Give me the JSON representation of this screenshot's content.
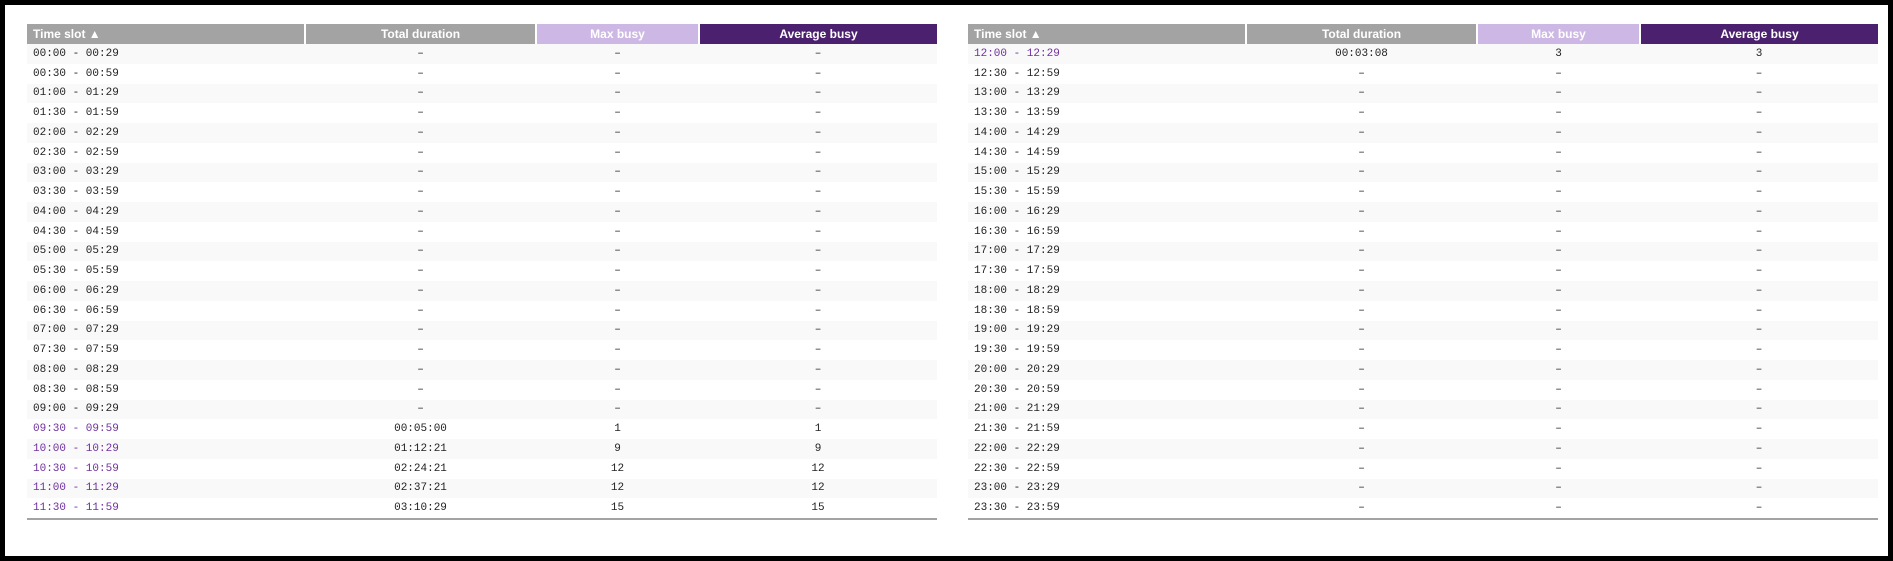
{
  "colors": {
    "header_gray": "#a3a3a3",
    "max_busy_header": "#cdb7e4",
    "avg_busy_header": "#4b216f",
    "active_slot_text": "#7030a0"
  },
  "columns": [
    "Time slot ▲",
    "Total duration",
    "Max busy",
    "Average busy"
  ],
  "left_table": {
    "rows": [
      {
        "slot": "00:00 - 00:29",
        "total": "–",
        "max": "–",
        "avg": "–"
      },
      {
        "slot": "00:30 - 00:59",
        "total": "–",
        "max": "–",
        "avg": "–"
      },
      {
        "slot": "01:00 - 01:29",
        "total": "–",
        "max": "–",
        "avg": "–"
      },
      {
        "slot": "01:30 - 01:59",
        "total": "–",
        "max": "–",
        "avg": "–"
      },
      {
        "slot": "02:00 - 02:29",
        "total": "–",
        "max": "–",
        "avg": "–"
      },
      {
        "slot": "02:30 - 02:59",
        "total": "–",
        "max": "–",
        "avg": "–"
      },
      {
        "slot": "03:00 - 03:29",
        "total": "–",
        "max": "–",
        "avg": "–"
      },
      {
        "slot": "03:30 - 03:59",
        "total": "–",
        "max": "–",
        "avg": "–"
      },
      {
        "slot": "04:00 - 04:29",
        "total": "–",
        "max": "–",
        "avg": "–"
      },
      {
        "slot": "04:30 - 04:59",
        "total": "–",
        "max": "–",
        "avg": "–"
      },
      {
        "slot": "05:00 - 05:29",
        "total": "–",
        "max": "–",
        "avg": "–"
      },
      {
        "slot": "05:30 - 05:59",
        "total": "–",
        "max": "–",
        "avg": "–"
      },
      {
        "slot": "06:00 - 06:29",
        "total": "–",
        "max": "–",
        "avg": "–"
      },
      {
        "slot": "06:30 - 06:59",
        "total": "–",
        "max": "–",
        "avg": "–"
      },
      {
        "slot": "07:00 - 07:29",
        "total": "–",
        "max": "–",
        "avg": "–"
      },
      {
        "slot": "07:30 - 07:59",
        "total": "–",
        "max": "–",
        "avg": "–"
      },
      {
        "slot": "08:00 - 08:29",
        "total": "–",
        "max": "–",
        "avg": "–"
      },
      {
        "slot": "08:30 - 08:59",
        "total": "–",
        "max": "–",
        "avg": "–"
      },
      {
        "slot": "09:00 - 09:29",
        "total": "–",
        "max": "–",
        "avg": "–"
      },
      {
        "slot": "09:30 - 09:59",
        "total": "00:05:00",
        "max": "1",
        "avg": "1",
        "active": true
      },
      {
        "slot": "10:00 - 10:29",
        "total": "01:12:21",
        "max": "9",
        "avg": "9",
        "active": true
      },
      {
        "slot": "10:30 - 10:59",
        "total": "02:24:21",
        "max": "12",
        "avg": "12",
        "active": true
      },
      {
        "slot": "11:00 - 11:29",
        "total": "02:37:21",
        "max": "12",
        "avg": "12",
        "active": true
      },
      {
        "slot": "11:30 - 11:59",
        "total": "03:10:29",
        "max": "15",
        "avg": "15",
        "active": true
      }
    ]
  },
  "right_table": {
    "rows": [
      {
        "slot": "12:00 - 12:29",
        "total": "00:03:08",
        "max": "3",
        "avg": "3",
        "active": true
      },
      {
        "slot": "12:30 - 12:59",
        "total": "–",
        "max": "–",
        "avg": "–"
      },
      {
        "slot": "13:00 - 13:29",
        "total": "–",
        "max": "–",
        "avg": "–"
      },
      {
        "slot": "13:30 - 13:59",
        "total": "–",
        "max": "–",
        "avg": "–"
      },
      {
        "slot": "14:00 - 14:29",
        "total": "–",
        "max": "–",
        "avg": "–"
      },
      {
        "slot": "14:30 - 14:59",
        "total": "–",
        "max": "–",
        "avg": "–"
      },
      {
        "slot": "15:00 - 15:29",
        "total": "–",
        "max": "–",
        "avg": "–"
      },
      {
        "slot": "15:30 - 15:59",
        "total": "–",
        "max": "–",
        "avg": "–"
      },
      {
        "slot": "16:00 - 16:29",
        "total": "–",
        "max": "–",
        "avg": "–"
      },
      {
        "slot": "16:30 - 16:59",
        "total": "–",
        "max": "–",
        "avg": "–"
      },
      {
        "slot": "17:00 - 17:29",
        "total": "–",
        "max": "–",
        "avg": "–"
      },
      {
        "slot": "17:30 - 17:59",
        "total": "–",
        "max": "–",
        "avg": "–"
      },
      {
        "slot": "18:00 - 18:29",
        "total": "–",
        "max": "–",
        "avg": "–"
      },
      {
        "slot": "18:30 - 18:59",
        "total": "–",
        "max": "–",
        "avg": "–"
      },
      {
        "slot": "19:00 - 19:29",
        "total": "–",
        "max": "–",
        "avg": "–"
      },
      {
        "slot": "19:30 - 19:59",
        "total": "–",
        "max": "–",
        "avg": "–"
      },
      {
        "slot": "20:00 - 20:29",
        "total": "–",
        "max": "–",
        "avg": "–"
      },
      {
        "slot": "20:30 - 20:59",
        "total": "–",
        "max": "–",
        "avg": "–"
      },
      {
        "slot": "21:00 - 21:29",
        "total": "–",
        "max": "–",
        "avg": "–"
      },
      {
        "slot": "21:30 - 21:59",
        "total": "–",
        "max": "–",
        "avg": "–"
      },
      {
        "slot": "22:00 - 22:29",
        "total": "–",
        "max": "–",
        "avg": "–"
      },
      {
        "slot": "22:30 - 22:59",
        "total": "–",
        "max": "–",
        "avg": "–"
      },
      {
        "slot": "23:00 - 23:29",
        "total": "–",
        "max": "–",
        "avg": "–"
      },
      {
        "slot": "23:30 - 23:59",
        "total": "–",
        "max": "–",
        "avg": "–"
      }
    ]
  }
}
